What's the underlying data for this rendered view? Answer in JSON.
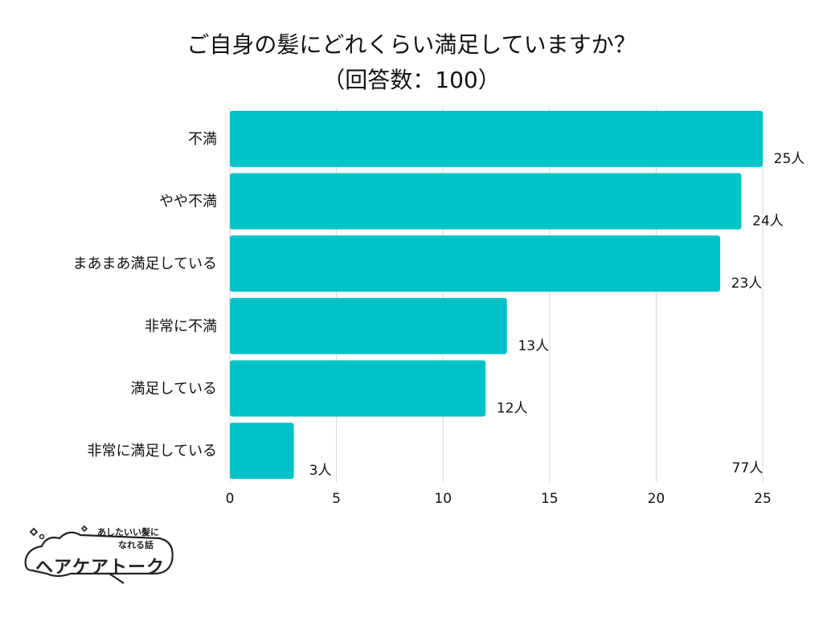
{
  "chart_data": {
    "type": "bar",
    "orientation": "horizontal",
    "title": "ご自身の髪にどれくらい満足していますか？",
    "subtitle": "（回答数：100）",
    "categories": [
      "不満",
      "やや不満",
      "まあまあ満足している",
      "非常に不満",
      "満足している",
      "非常に満足している"
    ],
    "values": [
      25,
      24,
      23,
      13,
      12,
      3
    ],
    "value_labels": [
      "25人",
      "24人",
      "23人",
      "13人",
      "12人",
      "3人"
    ],
    "extra_label": "77人",
    "x_ticks": [
      0,
      5,
      10,
      15,
      20,
      25
    ],
    "xlim": [
      0,
      25
    ],
    "grid": true,
    "bar_color": "#00C2C7"
  },
  "logo": {
    "tagline_1": "あしたいい髪に",
    "tagline_2": "なれる話",
    "name": "ヘアケアトーク"
  }
}
